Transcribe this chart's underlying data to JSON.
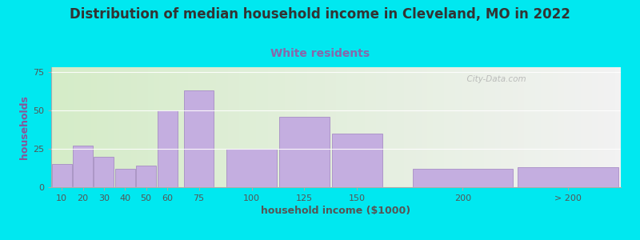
{
  "title": "Distribution of median household income in Cleveland, MO in 2022",
  "subtitle": "White residents",
  "xlabel": "household income ($1000)",
  "ylabel": "households",
  "bar_lefts": [
    5,
    15,
    25,
    35,
    45,
    55,
    67.5,
    87.5,
    112.5,
    137.5,
    175,
    225
  ],
  "bar_widths": [
    10,
    10,
    10,
    10,
    10,
    10,
    15,
    25,
    25,
    25,
    50,
    50
  ],
  "bar_values": [
    15,
    27,
    20,
    12,
    14,
    50,
    63,
    25,
    46,
    35,
    12,
    13
  ],
  "bar_color": "#c4aee0",
  "bar_edge_color": "#9e80c0",
  "xlim": [
    5,
    275
  ],
  "ylim": [
    0,
    78
  ],
  "yticks": [
    0,
    25,
    50,
    75
  ],
  "xticks": [
    10,
    20,
    30,
    40,
    50,
    60,
    75,
    100,
    125,
    150,
    200
  ],
  "xtick_labels": [
    "10",
    "20",
    "30",
    "40",
    "50",
    "60",
    "75",
    "100",
    "125",
    "150",
    "200"
  ],
  "extra_xtick": 250,
  "extra_xtick_label": "> 200",
  "background_outer": "#00e8f0",
  "bg_left_color": "#d5ecc8",
  "bg_right_color": "#f2f2f2",
  "title_fontsize": 12,
  "subtitle_fontsize": 10,
  "subtitle_color": "#8866aa",
  "title_color": "#333333",
  "axis_label_fontsize": 9,
  "tick_fontsize": 8,
  "ylabel_color": "#885599",
  "xlabel_color": "#555555",
  "watermark_text": "  City-Data.com",
  "watermark_color": "#aaaaaa"
}
